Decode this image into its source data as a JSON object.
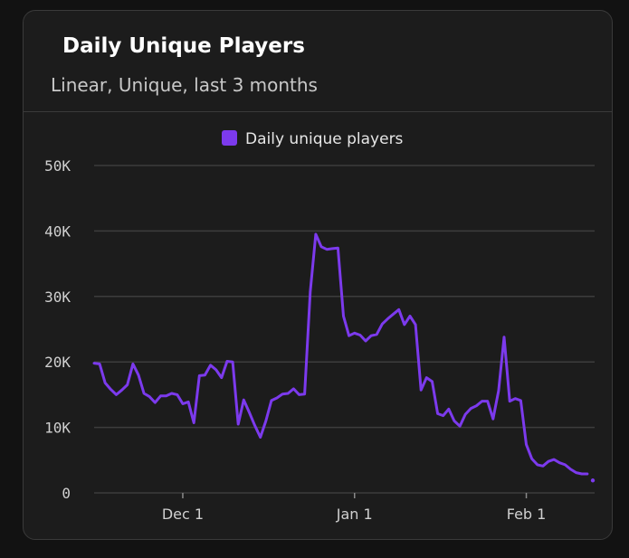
{
  "card": {
    "title": "Daily Unique Players",
    "subtitle": "Linear, Unique, last 3 months"
  },
  "colors": {
    "background": "#121212",
    "card": "#1c1c1c",
    "line": "#7c3aed",
    "grid": "#3d3d3d"
  },
  "chart_data": {
    "type": "line",
    "title": "Daily Unique Players",
    "subtitle": "Linear, Unique, last 3 months",
    "legend": [
      "Daily unique players"
    ],
    "legend_position": "top-center",
    "ylim": [
      0,
      50000
    ],
    "yticks": [
      0,
      10000,
      20000,
      30000,
      40000,
      50000
    ],
    "ytick_labels": [
      "0",
      "10K",
      "20K",
      "30K",
      "40K",
      "50K"
    ],
    "x_start_offset_days": -16,
    "xticks": [
      {
        "label": "Dec 1",
        "day": 0
      },
      {
        "label": "Jan 1",
        "day": 31
      },
      {
        "label": "Feb 1",
        "day": 62
      }
    ],
    "grid": true,
    "series": [
      {
        "name": "Daily unique players",
        "values": [
          19800,
          19700,
          16800,
          15800,
          15000,
          15700,
          16500,
          19700,
          18000,
          15200,
          14700,
          13800,
          14800,
          14800,
          15200,
          15000,
          13600,
          13900,
          10700,
          17900,
          18000,
          19500,
          18800,
          17600,
          20100,
          20000,
          10500,
          14200,
          12300,
          10300,
          8500,
          11000,
          14100,
          14500,
          15100,
          15200,
          15900,
          15000,
          15100,
          30700,
          39500,
          37600,
          37200,
          37300,
          37400,
          27000,
          24000,
          24400,
          24100,
          23200,
          24000,
          24200,
          25800,
          26600,
          27300,
          28000,
          25700,
          27000,
          25700,
          15700,
          17600,
          17000,
          12100,
          11800,
          12800,
          11000,
          10200,
          12000,
          12900,
          13300,
          14000,
          14000,
          11300,
          15600,
          23800,
          14000,
          14400,
          14100,
          7400,
          5200,
          4300,
          4100,
          4800,
          5100,
          4600,
          4300,
          3600,
          3100,
          2900,
          2900,
          1900
        ]
      }
    ]
  }
}
